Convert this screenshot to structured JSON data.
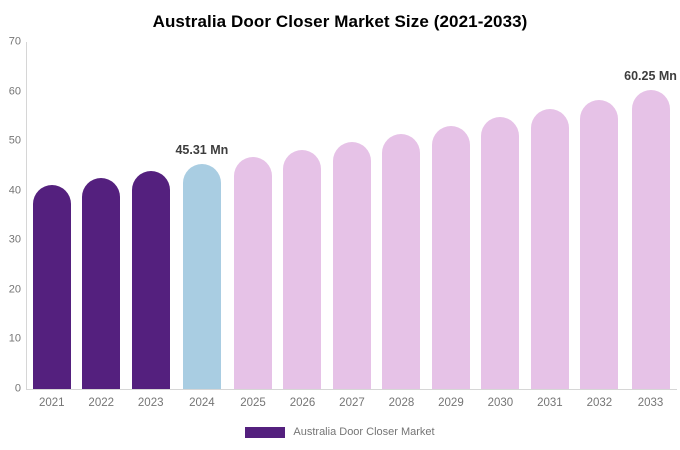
{
  "chart_data": {
    "type": "bar",
    "title": "Australia Door Closer Market Size (2021-2033)",
    "categories": [
      "2021",
      "2022",
      "2023",
      "2024",
      "2025",
      "2026",
      "2027",
      "2028",
      "2029",
      "2030",
      "2031",
      "2032",
      "2033"
    ],
    "values": [
      41.2,
      42.53,
      43.9,
      45.31,
      46.77,
      48.27,
      49.82,
      51.43,
      53.08,
      54.79,
      56.55,
      58.37,
      60.25
    ],
    "unit": "Mn",
    "bar_segments": [
      "historical",
      "historical",
      "historical",
      "current",
      "forecast",
      "forecast",
      "forecast",
      "forecast",
      "forecast",
      "forecast",
      "forecast",
      "forecast",
      "forecast"
    ],
    "palette": {
      "historical": "#54207E",
      "current": "#A9CDE2",
      "forecast": "#E6C2E7"
    },
    "value_labels": [
      {
        "index": 3,
        "text": "45.31 Mn"
      },
      {
        "index": 12,
        "text": "60.25 Mn"
      }
    ],
    "y_axis": {
      "min": 0,
      "max": 70,
      "step": 10,
      "ticks": [
        "0",
        "10",
        "20",
        "30",
        "40",
        "50",
        "60",
        "70"
      ]
    },
    "grid": false,
    "legend": {
      "position": "bottom-center",
      "items": [
        {
          "label": "Australia Door Closer Market",
          "color": "#54207E"
        }
      ]
    },
    "colors": {
      "background": "#FFFFFF",
      "title_text": "#000000",
      "axis_text": "#757575",
      "axis_line": "#D6D6D6",
      "value_label_text": "#3D3D3D"
    }
  }
}
